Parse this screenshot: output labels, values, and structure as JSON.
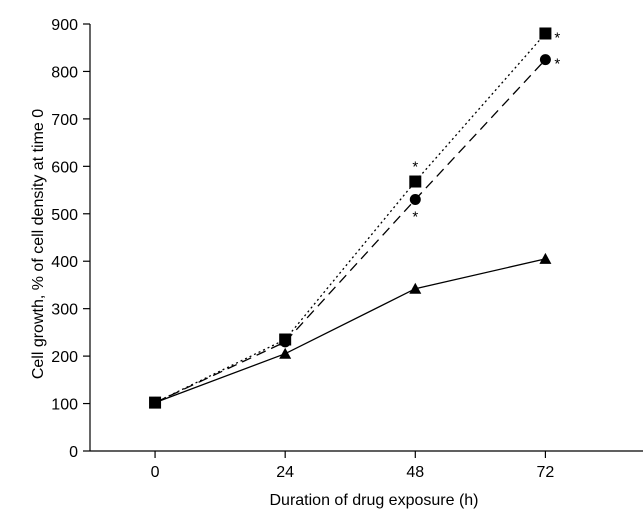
{
  "chart_data": {
    "type": "line",
    "title": "",
    "xlabel": "Duration of drug exposure (h)",
    "ylabel": "Cell growth, % of cell density at time 0",
    "x": [
      0,
      24,
      48,
      72
    ],
    "x_tick_labels": [
      "0",
      "24",
      "48",
      "72"
    ],
    "xlim": [
      -12,
      90
    ],
    "ylim": [
      0,
      900
    ],
    "y_ticks": [
      0,
      100,
      200,
      300,
      400,
      500,
      600,
      700,
      800,
      900
    ],
    "y_tick_labels": [
      "0",
      "100",
      "200",
      "300",
      "400",
      "500",
      "600",
      "700",
      "800",
      "900"
    ],
    "grid": false,
    "legend": "none",
    "series": [
      {
        "values": [
          102,
          235,
          568,
          880
        ],
        "marker": "square",
        "line_style": "dotted",
        "color": "#000000"
      },
      {
        "values": [
          102,
          230,
          530,
          825
        ],
        "marker": "circle",
        "line_style": "dashed",
        "color": "#000000"
      },
      {
        "values": [
          102,
          205,
          342,
          405
        ],
        "marker": "triangle",
        "line_style": "solid",
        "color": "#000000"
      }
    ],
    "annotations": [
      {
        "text": "*",
        "x": 48,
        "y": 568,
        "position": "above"
      },
      {
        "text": "*",
        "x": 48,
        "y": 530,
        "position": "below"
      },
      {
        "text": "*",
        "x": 72,
        "y": 880,
        "position": "right"
      },
      {
        "text": "*",
        "x": 72,
        "y": 825,
        "position": "right"
      }
    ]
  }
}
